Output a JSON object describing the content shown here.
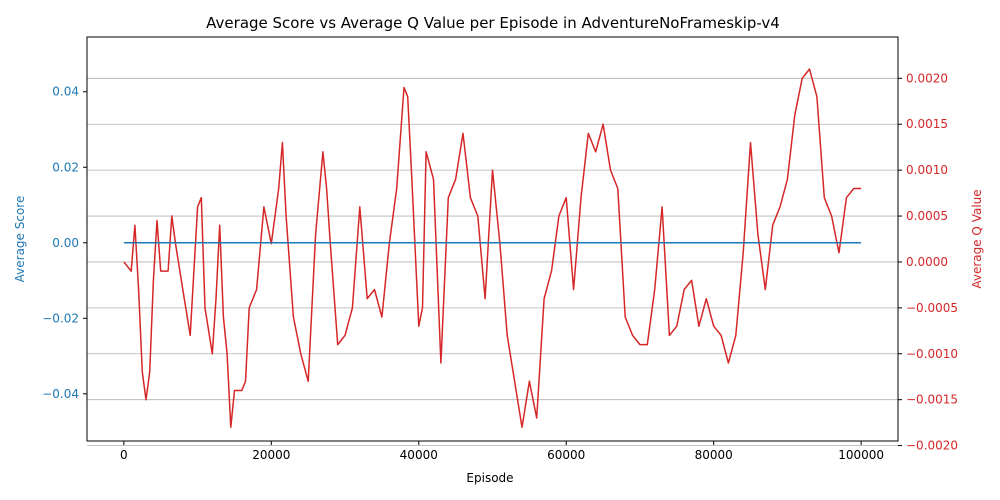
{
  "chart_data": {
    "type": "line",
    "title": "Average Score vs Average Q Value per Episode in AdventureNoFrameskip-v4",
    "xlabel": "Episode",
    "xlim": [
      -5000,
      105000
    ],
    "x_ticks": [
      0,
      20000,
      40000,
      60000,
      80000,
      100000
    ],
    "x_tick_labels": [
      "0",
      "20000",
      "40000",
      "60000",
      "80000",
      "100000"
    ],
    "grid": "horizontal, right axis",
    "left_axis": {
      "label": "Average Score",
      "color": "#1f77b4",
      "ylim": [
        -0.0525,
        0.0545
      ],
      "ticks": [
        -0.04,
        -0.02,
        0.0,
        0.02,
        0.04
      ],
      "tick_labels": [
        "−0.04",
        "−0.02",
        "0.00",
        "0.02",
        "0.04"
      ]
    },
    "right_axis": {
      "label": "Average Q Value",
      "color": "#d62728",
      "ylim": [
        -0.00195,
        0.00245
      ],
      "ticks": [
        -0.002,
        -0.0015,
        -0.001,
        -0.0005,
        0.0,
        0.0005,
        0.001,
        0.0015,
        0.002
      ],
      "tick_labels": [
        "−0.0020",
        "−0.0015",
        "−0.0010",
        "−0.0005",
        "0.0000",
        "0.0005",
        "0.0010",
        "0.0015",
        "0.0020"
      ]
    },
    "series": [
      {
        "axis": "left",
        "color": "#1f77b4",
        "x": [
          0,
          100000
        ],
        "values": [
          0.0,
          0.0
        ]
      },
      {
        "axis": "right",
        "color": "#d62728",
        "x": [
          0,
          1000,
          1500,
          2000,
          2500,
          3000,
          3500,
          4000,
          4500,
          5000,
          6000,
          6500,
          7000,
          8000,
          9000,
          10000,
          10500,
          11000,
          12000,
          12500,
          13000,
          13500,
          14000,
          14500,
          15000,
          16000,
          16500,
          17000,
          18000,
          19000,
          20000,
          21000,
          21500,
          22000,
          23000,
          24000,
          25000,
          26000,
          27000,
          27500,
          28000,
          29000,
          30000,
          31000,
          32000,
          33000,
          34000,
          35000,
          36000,
          37000,
          38000,
          38500,
          39000,
          40000,
          40500,
          41000,
          42000,
          43000,
          44000,
          45000,
          46000,
          47000,
          48000,
          49000,
          50000,
          51000,
          52000,
          53000,
          54000,
          55000,
          56000,
          57000,
          58000,
          59000,
          60000,
          61000,
          62000,
          63000,
          64000,
          65000,
          66000,
          67000,
          68000,
          69000,
          70000,
          71000,
          72000,
          73000,
          74000,
          75000,
          76000,
          77000,
          78000,
          79000,
          80000,
          81000,
          82000,
          83000,
          84000,
          85000,
          86000,
          87000,
          88000,
          89000,
          90000,
          91000,
          92000,
          93000,
          94000,
          95000,
          96000,
          97000,
          98000,
          99000,
          100000
        ],
        "values": [
          0.0,
          -0.0001,
          0.0004,
          -0.0003,
          -0.0012,
          -0.0015,
          -0.0012,
          -0.0002,
          0.00045,
          -0.0001,
          -0.0001,
          0.0005,
          0.0002,
          -0.0003,
          -0.0008,
          0.0006,
          0.0007,
          -0.0005,
          -0.001,
          -0.0004,
          0.0004,
          -0.0006,
          -0.001,
          -0.0018,
          -0.0014,
          -0.0014,
          -0.0013,
          -0.0005,
          -0.0003,
          0.0006,
          0.0002,
          0.0008,
          0.0013,
          0.0005,
          -0.0006,
          -0.001,
          -0.0013,
          0.0003,
          0.0012,
          0.0008,
          0.0002,
          -0.0009,
          -0.0008,
          -0.0005,
          0.0006,
          -0.0004,
          -0.0003,
          -0.0006,
          0.0002,
          0.0008,
          0.0019,
          0.0018,
          0.001,
          -0.0007,
          -0.0005,
          0.0012,
          0.0009,
          -0.0011,
          0.0007,
          0.0009,
          0.0014,
          0.0007,
          0.0005,
          -0.0004,
          0.001,
          0.0002,
          -0.0008,
          -0.0013,
          -0.0018,
          -0.0013,
          -0.0017,
          -0.0004,
          -0.0001,
          0.0005,
          0.0007,
          -0.0003,
          0.0007,
          0.0014,
          0.0012,
          0.0015,
          0.001,
          0.0008,
          -0.0006,
          -0.0008,
          -0.0009,
          -0.0009,
          -0.0003,
          0.0006,
          -0.0008,
          -0.0007,
          -0.0003,
          -0.0002,
          -0.0007,
          -0.0004,
          -0.0007,
          -0.0008,
          -0.0011,
          -0.0008,
          0.0001,
          0.0013,
          0.0003,
          -0.0003,
          0.0004,
          0.0006,
          0.0009,
          0.0016,
          0.002,
          0.0021,
          0.0018,
          0.0007,
          0.0005,
          0.0001,
          0.0007,
          0.0008,
          0.0008
        ]
      }
    ]
  }
}
